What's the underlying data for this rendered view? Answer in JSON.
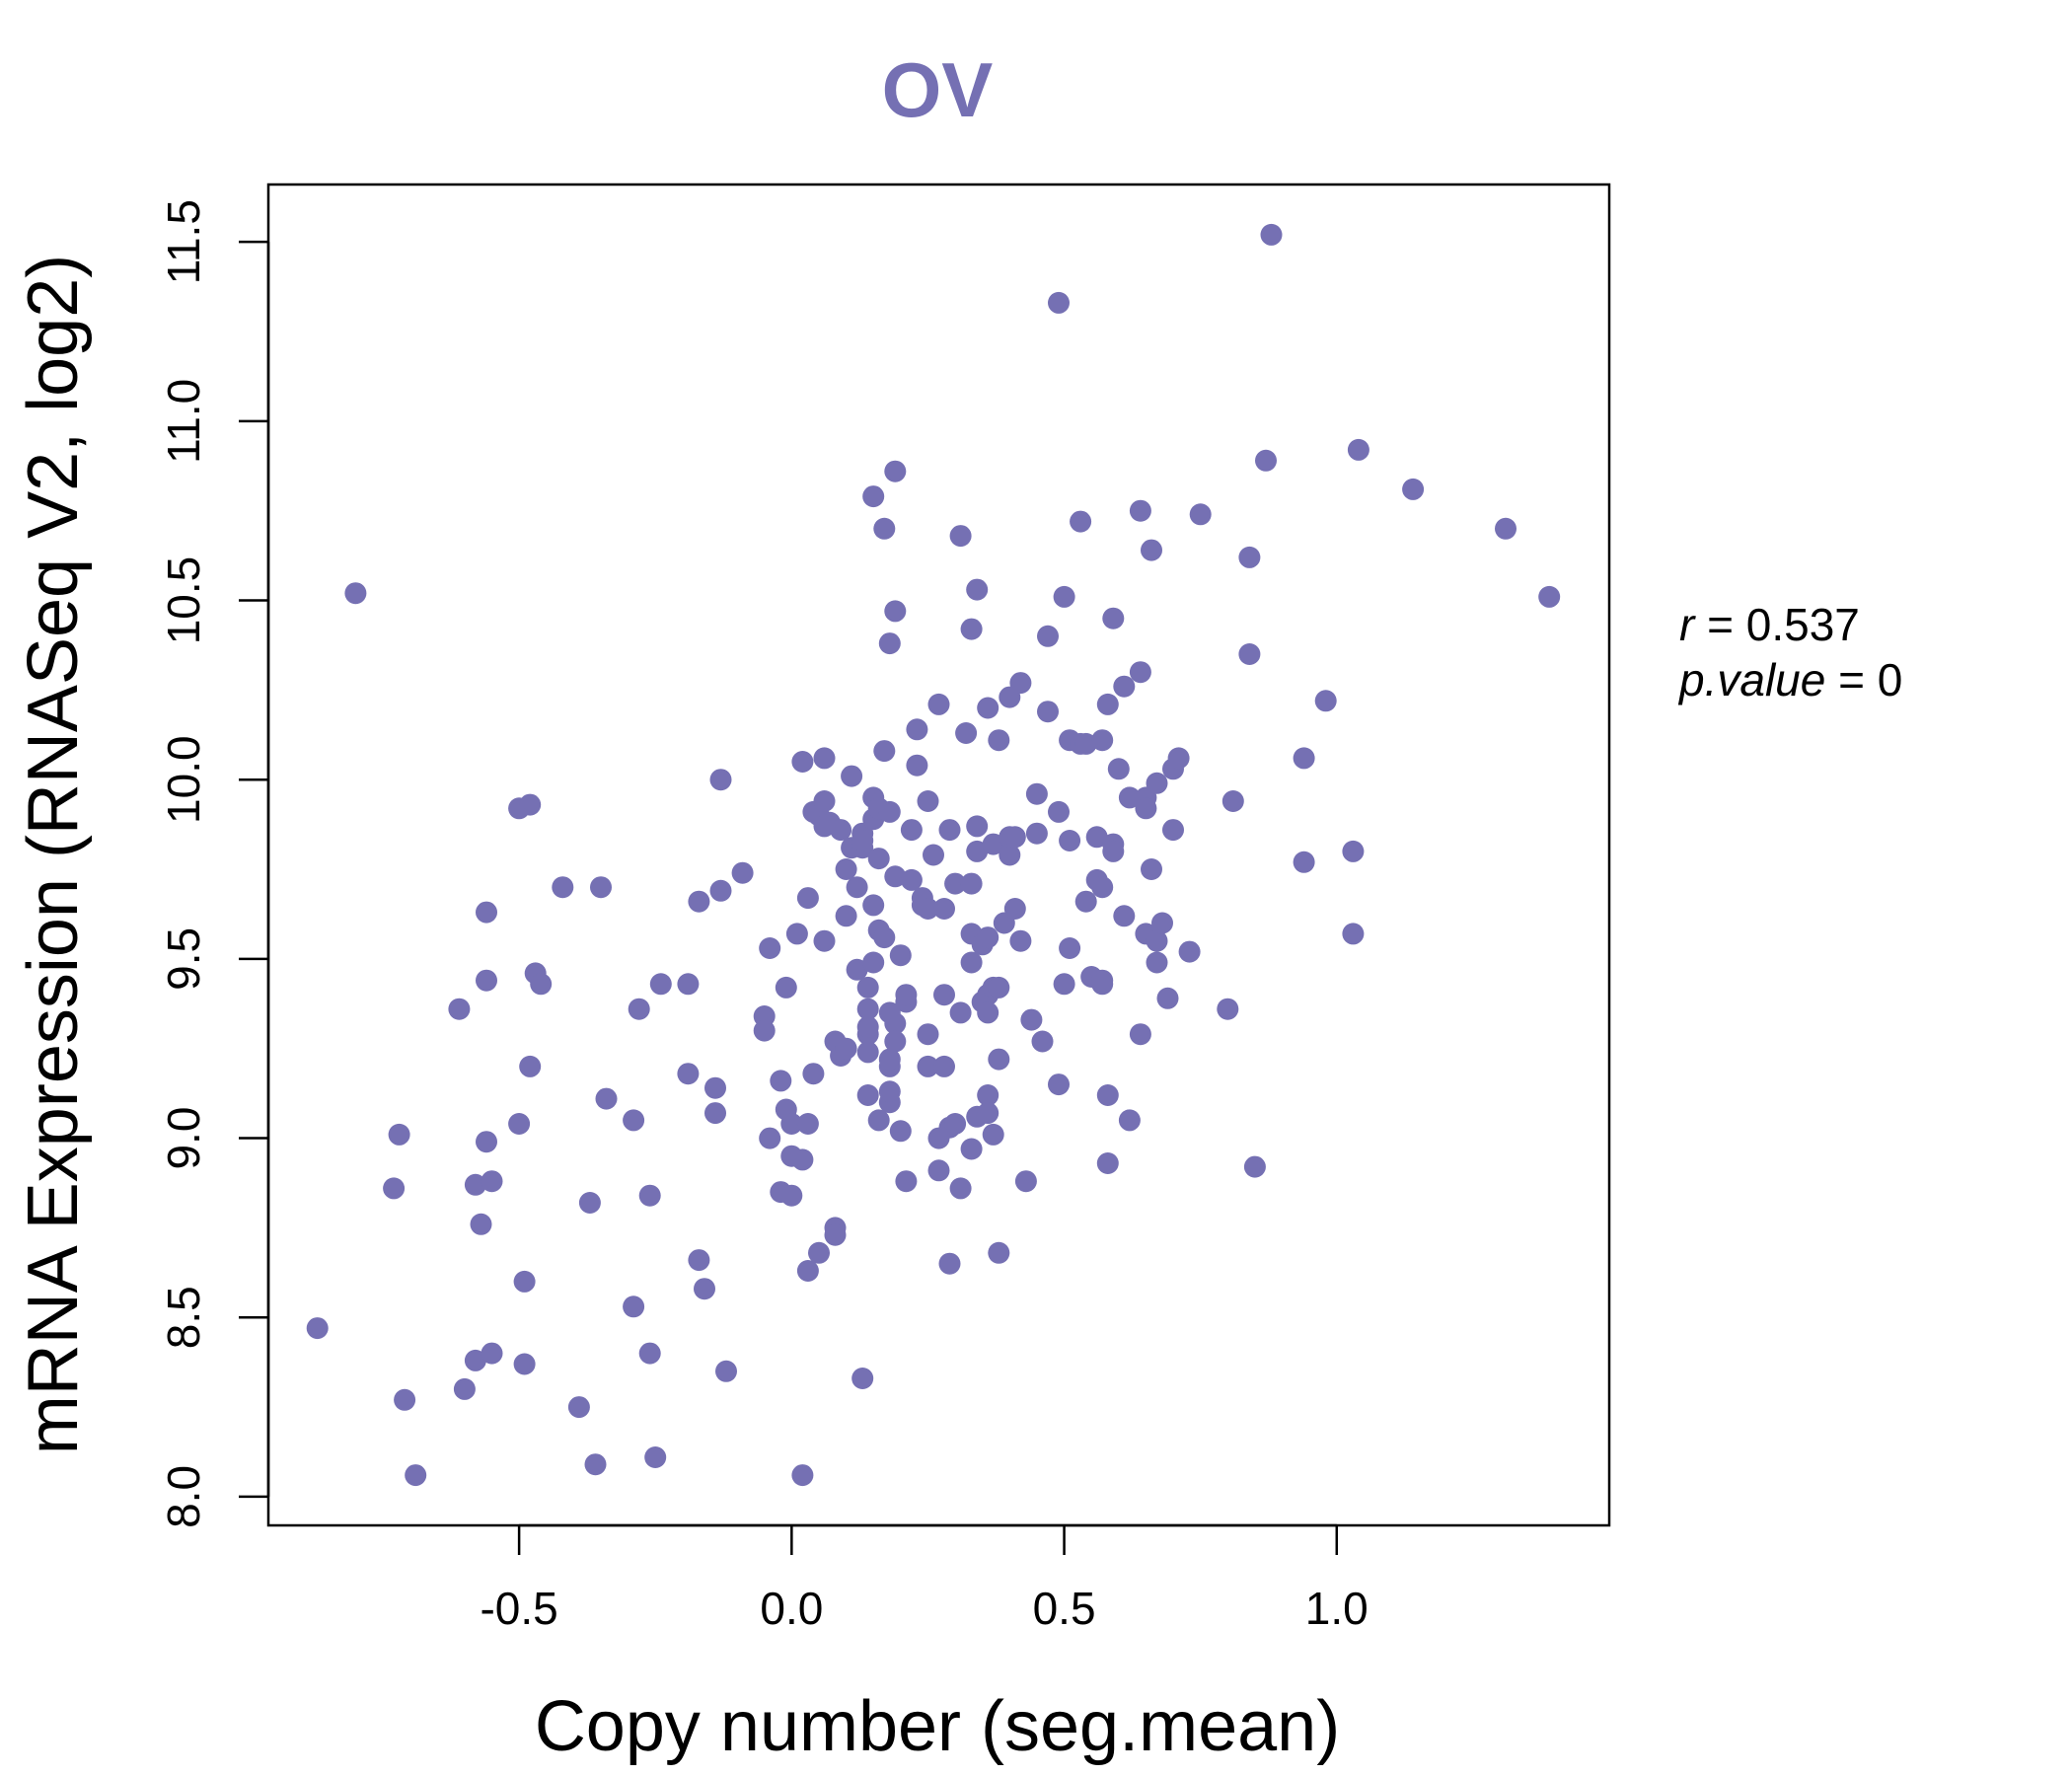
{
  "chart_data": {
    "type": "scatter",
    "title": "OV",
    "xlabel": "Copy number (seg.mean)",
    "ylabel": "mRNA Expression (RNASeq V2, log2)",
    "xlim": [
      -0.96,
      1.5
    ],
    "ylim": [
      7.92,
      11.66
    ],
    "xticks": [
      -0.5,
      0.0,
      0.5,
      1.0
    ],
    "xtick_labels": [
      "-0.5",
      "0.0",
      "0.5",
      "1.0"
    ],
    "yticks": [
      8.0,
      8.5,
      9.0,
      9.5,
      10.0,
      10.5,
      11.0,
      11.5
    ],
    "ytick_labels": [
      "8.0",
      "8.5",
      "9.0",
      "9.5",
      "10.0",
      "10.5",
      "11.0",
      "11.5"
    ],
    "grid": false,
    "point_color": "#7570b3",
    "stats": {
      "r_label": "r",
      "r_value": "0.537",
      "p_label": "p.value",
      "p_value": "0"
    },
    "points": [
      [
        -0.87,
        8.47
      ],
      [
        -0.8,
        10.52
      ],
      [
        -0.73,
        8.86
      ],
      [
        -0.72,
        9.01
      ],
      [
        -0.71,
        8.27
      ],
      [
        -0.69,
        8.06
      ],
      [
        -0.61,
        9.36
      ],
      [
        -0.6,
        8.3
      ],
      [
        -0.58,
        8.87
      ],
      [
        -0.58,
        8.38
      ],
      [
        -0.57,
        8.76
      ],
      [
        -0.56,
        9.44
      ],
      [
        -0.56,
        8.99
      ],
      [
        -0.56,
        9.63
      ],
      [
        -0.55,
        8.4
      ],
      [
        -0.55,
        8.88
      ],
      [
        -0.5,
        9.04
      ],
      [
        -0.5,
        9.92
      ],
      [
        -0.49,
        8.6
      ],
      [
        -0.49,
        8.37
      ],
      [
        -0.48,
        9.93
      ],
      [
        -0.48,
        9.2
      ],
      [
        -0.47,
        9.46
      ],
      [
        -0.46,
        9.43
      ],
      [
        -0.42,
        9.7
      ],
      [
        -0.39,
        8.25
      ],
      [
        -0.37,
        8.82
      ],
      [
        -0.36,
        8.09
      ],
      [
        -0.35,
        9.7
      ],
      [
        -0.34,
        9.11
      ],
      [
        -0.29,
        8.53
      ],
      [
        -0.29,
        9.05
      ],
      [
        -0.28,
        9.36
      ],
      [
        -0.26,
        8.4
      ],
      [
        -0.26,
        8.84
      ],
      [
        -0.25,
        8.11
      ],
      [
        -0.24,
        9.43
      ],
      [
        -0.19,
        9.18
      ],
      [
        -0.19,
        9.43
      ],
      [
        -0.17,
        8.66
      ],
      [
        -0.17,
        9.66
      ],
      [
        -0.16,
        8.58
      ],
      [
        -0.14,
        9.14
      ],
      [
        -0.14,
        9.07
      ],
      [
        -0.13,
        9.69
      ],
      [
        -0.13,
        10.0
      ],
      [
        -0.12,
        8.35
      ],
      [
        -0.09,
        9.74
      ],
      [
        -0.05,
        9.34
      ],
      [
        -0.05,
        9.3
      ],
      [
        -0.04,
        9.53
      ],
      [
        -0.04,
        9.0
      ],
      [
        -0.02,
        9.16
      ],
      [
        -0.02,
        8.85
      ],
      [
        -0.01,
        9.08
      ],
      [
        -0.01,
        9.42
      ],
      [
        0.0,
        9.04
      ],
      [
        0.0,
        8.95
      ],
      [
        0.0,
        8.84
      ],
      [
        0.01,
        9.57
      ],
      [
        0.02,
        8.94
      ],
      [
        0.02,
        10.05
      ],
      [
        0.02,
        8.06
      ],
      [
        0.03,
        9.04
      ],
      [
        0.03,
        8.63
      ],
      [
        0.03,
        9.67
      ],
      [
        0.04,
        9.18
      ],
      [
        0.04,
        9.91
      ],
      [
        0.05,
        8.68
      ],
      [
        0.05,
        9.9
      ],
      [
        0.06,
        9.55
      ],
      [
        0.06,
        10.06
      ],
      [
        0.06,
        9.87
      ],
      [
        0.06,
        9.94
      ],
      [
        0.07,
        9.88
      ],
      [
        0.08,
        8.75
      ],
      [
        0.08,
        8.73
      ],
      [
        0.08,
        9.27
      ],
      [
        0.09,
        9.23
      ],
      [
        0.09,
        9.86
      ],
      [
        0.1,
        9.62
      ],
      [
        0.1,
        9.25
      ],
      [
        0.1,
        9.75
      ],
      [
        0.11,
        10.01
      ],
      [
        0.11,
        9.81
      ],
      [
        0.12,
        9.7
      ],
      [
        0.12,
        9.47
      ],
      [
        0.13,
        9.85
      ],
      [
        0.13,
        9.81
      ],
      [
        0.13,
        9.83
      ],
      [
        0.13,
        8.33
      ],
      [
        0.14,
        9.42
      ],
      [
        0.14,
        9.24
      ],
      [
        0.14,
        9.29
      ],
      [
        0.14,
        9.31
      ],
      [
        0.14,
        9.12
      ],
      [
        0.14,
        9.36
      ],
      [
        0.15,
        9.49
      ],
      [
        0.15,
        9.65
      ],
      [
        0.15,
        9.95
      ],
      [
        0.15,
        9.89
      ],
      [
        0.15,
        10.79
      ],
      [
        0.16,
        9.05
      ],
      [
        0.16,
        9.58
      ],
      [
        0.16,
        9.78
      ],
      [
        0.16,
        9.92
      ],
      [
        0.17,
        9.56
      ],
      [
        0.17,
        10.08
      ],
      [
        0.17,
        10.7
      ],
      [
        0.18,
        9.2
      ],
      [
        0.18,
        9.22
      ],
      [
        0.18,
        9.1
      ],
      [
        0.18,
        9.13
      ],
      [
        0.18,
        9.35
      ],
      [
        0.18,
        9.91
      ],
      [
        0.18,
        10.38
      ],
      [
        0.19,
        10.86
      ],
      [
        0.19,
        10.47
      ],
      [
        0.19,
        9.73
      ],
      [
        0.19,
        9.32
      ],
      [
        0.19,
        9.27
      ],
      [
        0.2,
        9.51
      ],
      [
        0.2,
        9.02
      ],
      [
        0.21,
        9.38
      ],
      [
        0.21,
        9.4
      ],
      [
        0.21,
        8.88
      ],
      [
        0.22,
        9.72
      ],
      [
        0.22,
        9.86
      ],
      [
        0.23,
        10.14
      ],
      [
        0.23,
        10.04
      ],
      [
        0.24,
        9.65
      ],
      [
        0.24,
        9.67
      ],
      [
        0.25,
        9.64
      ],
      [
        0.25,
        9.29
      ],
      [
        0.25,
        9.94
      ],
      [
        0.25,
        9.2
      ],
      [
        0.26,
        9.79
      ],
      [
        0.27,
        10.21
      ],
      [
        0.27,
        8.91
      ],
      [
        0.27,
        9.0
      ],
      [
        0.28,
        9.4
      ],
      [
        0.28,
        9.64
      ],
      [
        0.28,
        9.2
      ],
      [
        0.29,
        9.03
      ],
      [
        0.29,
        9.86
      ],
      [
        0.29,
        8.65
      ],
      [
        0.3,
        9.71
      ],
      [
        0.3,
        9.04
      ],
      [
        0.31,
        8.86
      ],
      [
        0.31,
        9.35
      ],
      [
        0.31,
        10.68
      ],
      [
        0.32,
        10.13
      ],
      [
        0.33,
        10.42
      ],
      [
        0.33,
        9.57
      ],
      [
        0.33,
        9.71
      ],
      [
        0.33,
        9.49
      ],
      [
        0.33,
        8.97
      ],
      [
        0.34,
        10.53
      ],
      [
        0.34,
        9.87
      ],
      [
        0.34,
        9.06
      ],
      [
        0.34,
        9.8
      ],
      [
        0.35,
        9.38
      ],
      [
        0.35,
        9.54
      ],
      [
        0.36,
        9.12
      ],
      [
        0.36,
        9.07
      ],
      [
        0.36,
        9.4
      ],
      [
        0.36,
        9.56
      ],
      [
        0.36,
        9.35
      ],
      [
        0.36,
        10.2
      ],
      [
        0.37,
        9.82
      ],
      [
        0.37,
        9.01
      ],
      [
        0.37,
        9.42
      ],
      [
        0.38,
        9.42
      ],
      [
        0.38,
        8.68
      ],
      [
        0.38,
        9.22
      ],
      [
        0.38,
        10.11
      ],
      [
        0.39,
        9.6
      ],
      [
        0.4,
        9.79
      ],
      [
        0.4,
        9.84
      ],
      [
        0.4,
        10.23
      ],
      [
        0.41,
        9.64
      ],
      [
        0.41,
        9.84
      ],
      [
        0.42,
        10.27
      ],
      [
        0.42,
        9.55
      ],
      [
        0.43,
        8.88
      ],
      [
        0.44,
        9.33
      ],
      [
        0.45,
        9.96
      ],
      [
        0.45,
        9.85
      ],
      [
        0.46,
        9.27
      ],
      [
        0.47,
        10.19
      ],
      [
        0.47,
        10.4
      ],
      [
        0.49,
        11.33
      ],
      [
        0.49,
        9.15
      ],
      [
        0.49,
        9.91
      ],
      [
        0.5,
        10.51
      ],
      [
        0.5,
        9.43
      ],
      [
        0.51,
        9.83
      ],
      [
        0.51,
        9.53
      ],
      [
        0.51,
        10.11
      ],
      [
        0.53,
        10.72
      ],
      [
        0.53,
        10.1
      ],
      [
        0.54,
        10.1
      ],
      [
        0.54,
        9.66
      ],
      [
        0.55,
        9.45
      ],
      [
        0.56,
        9.84
      ],
      [
        0.56,
        9.72
      ],
      [
        0.57,
        9.43
      ],
      [
        0.57,
        9.7
      ],
      [
        0.57,
        9.44
      ],
      [
        0.57,
        10.11
      ],
      [
        0.58,
        9.12
      ],
      [
        0.58,
        10.21
      ],
      [
        0.58,
        8.93
      ],
      [
        0.59,
        10.45
      ],
      [
        0.59,
        9.82
      ],
      [
        0.59,
        9.8
      ],
      [
        0.6,
        10.03
      ],
      [
        0.61,
        9.62
      ],
      [
        0.61,
        10.26
      ],
      [
        0.62,
        9.95
      ],
      [
        0.62,
        9.05
      ],
      [
        0.64,
        9.29
      ],
      [
        0.64,
        10.3
      ],
      [
        0.64,
        10.75
      ],
      [
        0.65,
        9.57
      ],
      [
        0.65,
        9.95
      ],
      [
        0.65,
        9.92
      ],
      [
        0.66,
        9.75
      ],
      [
        0.66,
        10.64
      ],
      [
        0.67,
        9.99
      ],
      [
        0.67,
        9.55
      ],
      [
        0.67,
        9.49
      ],
      [
        0.68,
        9.6
      ],
      [
        0.69,
        9.39
      ],
      [
        0.7,
        9.86
      ],
      [
        0.7,
        10.03
      ],
      [
        0.71,
        10.06
      ],
      [
        0.73,
        9.52
      ],
      [
        0.75,
        10.74
      ],
      [
        0.8,
        9.36
      ],
      [
        0.81,
        9.94
      ],
      [
        0.84,
        10.62
      ],
      [
        0.84,
        10.35
      ],
      [
        0.85,
        8.92
      ],
      [
        0.87,
        10.89
      ],
      [
        0.88,
        11.52
      ],
      [
        0.94,
        9.77
      ],
      [
        0.94,
        10.06
      ],
      [
        0.98,
        10.22
      ],
      [
        1.03,
        9.8
      ],
      [
        1.03,
        9.57
      ],
      [
        1.04,
        10.92
      ],
      [
        1.14,
        10.81
      ],
      [
        1.31,
        10.7
      ],
      [
        1.39,
        10.51
      ]
    ]
  }
}
